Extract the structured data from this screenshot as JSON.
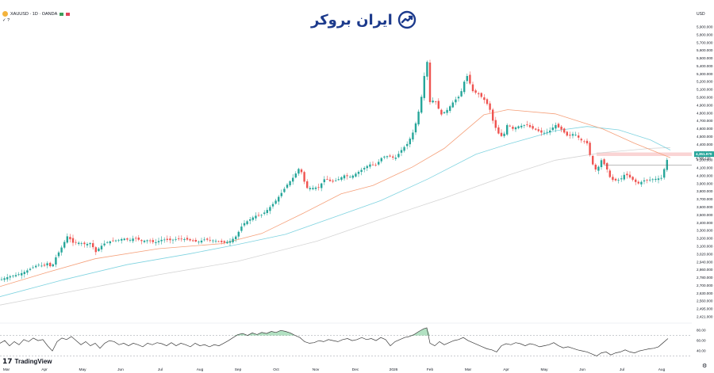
{
  "header": {
    "symbol_line": "XAUUSD · 1D · OANDA",
    "sub_line": "✓ ?",
    "currency": "USD"
  },
  "brand": {
    "name": "ایران بروکر"
  },
  "footer": {
    "logo_text": "TradingView"
  },
  "colors": {
    "up": "#26a69a",
    "down": "#ef5350",
    "ma_fast": "#f5a07a",
    "ma_mid": "#7fd3e0",
    "ma_slow": "#d4d4d4",
    "rsi_line": "#3a3a3a",
    "rsi_fill": "#73c98f",
    "price_tag": "#26a69a",
    "brand": "#1c3a8c"
  },
  "chart_data": {
    "type": "candlestick",
    "y_axis_labels": [
      "5,900.000",
      "5,800.000",
      "5,700.000",
      "5,600.000",
      "5,500.000",
      "5,400.000",
      "5,300.000",
      "5,200.000",
      "5,100.000",
      "5,000.000",
      "4,900.000",
      "4,800.000",
      "4,700.000",
      "4,600.000",
      "4,500.000",
      "4,400.000",
      "4,300.000",
      "4,200.000",
      "4,100.000",
      "4,000.000",
      "3,900.000",
      "3,800.000",
      "3,700.000",
      "3,600.000",
      "3,500.000",
      "3,400.000",
      "3,300.000",
      "3,200.000",
      "3,100.000",
      "3,020.000",
      "2,940.000",
      "2,860.000",
      "2,780.000",
      "2,700.000",
      "2,630.000",
      "2,560.000",
      "2,495.000",
      "2,421.000"
    ],
    "y_range": [
      2421,
      5900
    ],
    "x_axis_labels": [
      "Mar",
      "Apr",
      "May",
      "Jun",
      "Jul",
      "Aug",
      "Sep",
      "Oct",
      "Nov",
      "Dec",
      "2026",
      "Feb",
      "Mar",
      "Apr",
      "May",
      "Jun",
      "Jul",
      "Aug"
    ],
    "current_price_label": "4,351.970",
    "secondary_price_label": "4,305.120",
    "resistance_zone": [
      4330,
      4372
    ],
    "close_path": [
      [
        0,
        2860
      ],
      [
        12,
        2900
      ],
      [
        22,
        2920
      ],
      [
        30,
        2950
      ],
      [
        40,
        3000
      ],
      [
        48,
        3040
      ],
      [
        55,
        3020
      ],
      [
        60,
        3060
      ],
      [
        65,
        3000
      ],
      [
        70,
        3120
      ],
      [
        78,
        3250
      ],
      [
        85,
        3380
      ],
      [
        92,
        3300
      ],
      [
        100,
        3300
      ],
      [
        108,
        3280
      ],
      [
        115,
        3300
      ],
      [
        120,
        3180
      ],
      [
        126,
        3250
      ],
      [
        133,
        3300
      ],
      [
        140,
        3320
      ],
      [
        148,
        3330
      ],
      [
        156,
        3350
      ],
      [
        163,
        3330
      ],
      [
        170,
        3360
      ],
      [
        178,
        3320
      ],
      [
        186,
        3330
      ],
      [
        195,
        3300
      ],
      [
        205,
        3340
      ],
      [
        215,
        3330
      ],
      [
        225,
        3350
      ],
      [
        235,
        3340
      ],
      [
        243,
        3320
      ],
      [
        250,
        3310
      ],
      [
        258,
        3340
      ],
      [
        266,
        3330
      ],
      [
        274,
        3320
      ],
      [
        282,
        3300
      ],
      [
        290,
        3320
      ],
      [
        298,
        3380
      ],
      [
        306,
        3520
      ],
      [
        314,
        3570
      ],
      [
        322,
        3620
      ],
      [
        330,
        3630
      ],
      [
        338,
        3700
      ],
      [
        346,
        3780
      ],
      [
        354,
        3880
      ],
      [
        362,
        3990
      ],
      [
        370,
        4080
      ],
      [
        378,
        4200
      ],
      [
        386,
        3950
      ],
      [
        394,
        3950
      ],
      [
        402,
        3960
      ],
      [
        410,
        4070
      ],
      [
        418,
        4020
      ],
      [
        426,
        4050
      ],
      [
        434,
        4100
      ],
      [
        442,
        4080
      ],
      [
        450,
        4130
      ],
      [
        458,
        4180
      ],
      [
        466,
        4230
      ],
      [
        474,
        4220
      ],
      [
        482,
        4320
      ],
      [
        490,
        4330
      ],
      [
        498,
        4300
      ],
      [
        506,
        4400
      ],
      [
        514,
        4480
      ],
      [
        522,
        4640
      ],
      [
        530,
        4950
      ],
      [
        538,
        5500
      ],
      [
        542,
        4970
      ],
      [
        548,
        5000
      ],
      [
        556,
        4820
      ],
      [
        564,
        4880
      ],
      [
        572,
        4980
      ],
      [
        580,
        5050
      ],
      [
        588,
        5300
      ],
      [
        596,
        5100
      ],
      [
        604,
        5060
      ],
      [
        612,
        4980
      ],
      [
        617,
        4900
      ],
      [
        622,
        4720
      ],
      [
        628,
        4600
      ],
      [
        634,
        4550
      ],
      [
        640,
        4720
      ],
      [
        646,
        4650
      ],
      [
        652,
        4680
      ],
      [
        658,
        4690
      ],
      [
        664,
        4700
      ],
      [
        670,
        4660
      ],
      [
        676,
        4640
      ],
      [
        684,
        4600
      ],
      [
        692,
        4620
      ],
      [
        700,
        4700
      ],
      [
        708,
        4640
      ],
      [
        716,
        4560
      ],
      [
        724,
        4600
      ],
      [
        732,
        4520
      ],
      [
        740,
        4480
      ],
      [
        746,
        4250
      ],
      [
        752,
        4150
      ],
      [
        758,
        4280
      ],
      [
        764,
        4200
      ],
      [
        770,
        4050
      ],
      [
        776,
        4040
      ],
      [
        782,
        4050
      ],
      [
        788,
        4120
      ],
      [
        796,
        4060
      ],
      [
        804,
        4000
      ],
      [
        812,
        4040
      ],
      [
        820,
        4050
      ],
      [
        828,
        4060
      ],
      [
        834,
        4070
      ],
      [
        838,
        4200
      ],
      [
        843,
        4350
      ]
    ],
    "ma_fast": [
      [
        0,
        2780
      ],
      [
        60,
        2950
      ],
      [
        120,
        3110
      ],
      [
        200,
        3230
      ],
      [
        280,
        3290
      ],
      [
        330,
        3410
      ],
      [
        380,
        3640
      ],
      [
        430,
        3880
      ],
      [
        470,
        3980
      ],
      [
        520,
        4200
      ],
      [
        560,
        4420
      ],
      [
        610,
        4820
      ],
      [
        640,
        4880
      ],
      [
        700,
        4830
      ],
      [
        760,
        4650
      ],
      [
        800,
        4480
      ],
      [
        845,
        4310
      ]
    ],
    "ma_mid": [
      [
        0,
        2660
      ],
      [
        80,
        2860
      ],
      [
        160,
        3040
      ],
      [
        240,
        3170
      ],
      [
        300,
        3280
      ],
      [
        360,
        3400
      ],
      [
        420,
        3600
      ],
      [
        480,
        3800
      ],
      [
        540,
        4060
      ],
      [
        600,
        4350
      ],
      [
        640,
        4470
      ],
      [
        700,
        4630
      ],
      [
        740,
        4680
      ],
      [
        780,
        4640
      ],
      [
        820,
        4520
      ],
      [
        845,
        4400
      ]
    ],
    "ma_slow": [
      [
        0,
        2560
      ],
      [
        100,
        2740
      ],
      [
        200,
        2920
      ],
      [
        300,
        3080
      ],
      [
        400,
        3320
      ],
      [
        480,
        3580
      ],
      [
        560,
        3830
      ],
      [
        640,
        4100
      ],
      [
        700,
        4280
      ],
      [
        760,
        4370
      ],
      [
        820,
        4420
      ],
      [
        845,
        4430
      ]
    ],
    "rsi": {
      "axis_labels": [
        "80.00",
        "60.00",
        "40.00"
      ],
      "upper_band": 70,
      "lower_band": 30,
      "range": [
        20,
        88
      ],
      "values": [
        [
          0,
          55
        ],
        [
          6,
          60
        ],
        [
          12,
          50
        ],
        [
          18,
          58
        ],
        [
          24,
          52
        ],
        [
          30,
          62
        ],
        [
          36,
          58
        ],
        [
          42,
          65
        ],
        [
          48,
          60
        ],
        [
          54,
          62
        ],
        [
          60,
          50
        ],
        [
          66,
          40
        ],
        [
          72,
          58
        ],
        [
          78,
          65
        ],
        [
          84,
          62
        ],
        [
          90,
          68
        ],
        [
          96,
          60
        ],
        [
          102,
          52
        ],
        [
          108,
          58
        ],
        [
          114,
          50
        ],
        [
          120,
          55
        ],
        [
          126,
          45
        ],
        [
          132,
          55
        ],
        [
          138,
          60
        ],
        [
          144,
          58
        ],
        [
          150,
          52
        ],
        [
          156,
          55
        ],
        [
          162,
          50
        ],
        [
          168,
          55
        ],
        [
          174,
          52
        ],
        [
          180,
          48
        ],
        [
          186,
          55
        ],
        [
          192,
          52
        ],
        [
          198,
          56
        ],
        [
          204,
          54
        ],
        [
          210,
          50
        ],
        [
          216,
          56
        ],
        [
          222,
          50
        ],
        [
          228,
          55
        ],
        [
          234,
          52
        ],
        [
          240,
          48
        ],
        [
          246,
          55
        ],
        [
          252,
          50
        ],
        [
          258,
          52
        ],
        [
          264,
          48
        ],
        [
          270,
          52
        ],
        [
          276,
          50
        ],
        [
          282,
          55
        ],
        [
          288,
          60
        ],
        [
          294,
          66
        ],
        [
          300,
          72
        ],
        [
          306,
          74
        ],
        [
          312,
          70
        ],
        [
          318,
          75
        ],
        [
          324,
          72
        ],
        [
          330,
          76
        ],
        [
          336,
          74
        ],
        [
          342,
          78
        ],
        [
          348,
          76
        ],
        [
          354,
          80
        ],
        [
          360,
          78
        ],
        [
          366,
          75
        ],
        [
          372,
          70
        ],
        [
          378,
          66
        ],
        [
          384,
          58
        ],
        [
          390,
          55
        ],
        [
          396,
          56
        ],
        [
          402,
          60
        ],
        [
          408,
          58
        ],
        [
          414,
          62
        ],
        [
          420,
          60
        ],
        [
          426,
          58
        ],
        [
          432,
          62
        ],
        [
          438,
          64
        ],
        [
          444,
          60
        ],
        [
          450,
          62
        ],
        [
          456,
          66
        ],
        [
          462,
          62
        ],
        [
          468,
          64
        ],
        [
          474,
          60
        ],
        [
          480,
          66
        ],
        [
          486,
          62
        ],
        [
          492,
          50
        ],
        [
          498,
          58
        ],
        [
          504,
          62
        ],
        [
          510,
          66
        ],
        [
          516,
          68
        ],
        [
          522,
          72
        ],
        [
          528,
          78
        ],
        [
          534,
          83
        ],
        [
          538,
          85
        ],
        [
          542,
          55
        ],
        [
          548,
          50
        ],
        [
          554,
          58
        ],
        [
          560,
          52
        ],
        [
          566,
          56
        ],
        [
          572,
          60
        ],
        [
          578,
          62
        ],
        [
          584,
          66
        ],
        [
          590,
          60
        ],
        [
          596,
          56
        ],
        [
          602,
          52
        ],
        [
          608,
          48
        ],
        [
          614,
          44
        ],
        [
          620,
          42
        ],
        [
          626,
          38
        ],
        [
          632,
          50
        ],
        [
          638,
          54
        ],
        [
          644,
          52
        ],
        [
          650,
          56
        ],
        [
          656,
          54
        ],
        [
          662,
          50
        ],
        [
          668,
          54
        ],
        [
          674,
          52
        ],
        [
          680,
          48
        ],
        [
          686,
          50
        ],
        [
          692,
          52
        ],
        [
          698,
          56
        ],
        [
          704,
          50
        ],
        [
          710,
          46
        ],
        [
          716,
          48
        ],
        [
          722,
          45
        ],
        [
          728,
          42
        ],
        [
          734,
          40
        ],
        [
          740,
          38
        ],
        [
          746,
          34
        ],
        [
          752,
          30
        ],
        [
          758,
          36
        ],
        [
          764,
          38
        ],
        [
          770,
          32
        ],
        [
          776,
          36
        ],
        [
          782,
          38
        ],
        [
          788,
          42
        ],
        [
          794,
          38
        ],
        [
          800,
          36
        ],
        [
          806,
          40
        ],
        [
          812,
          42
        ],
        [
          818,
          44
        ],
        [
          824,
          45
        ],
        [
          830,
          48
        ],
        [
          836,
          56
        ],
        [
          842,
          64
        ]
      ]
    }
  }
}
